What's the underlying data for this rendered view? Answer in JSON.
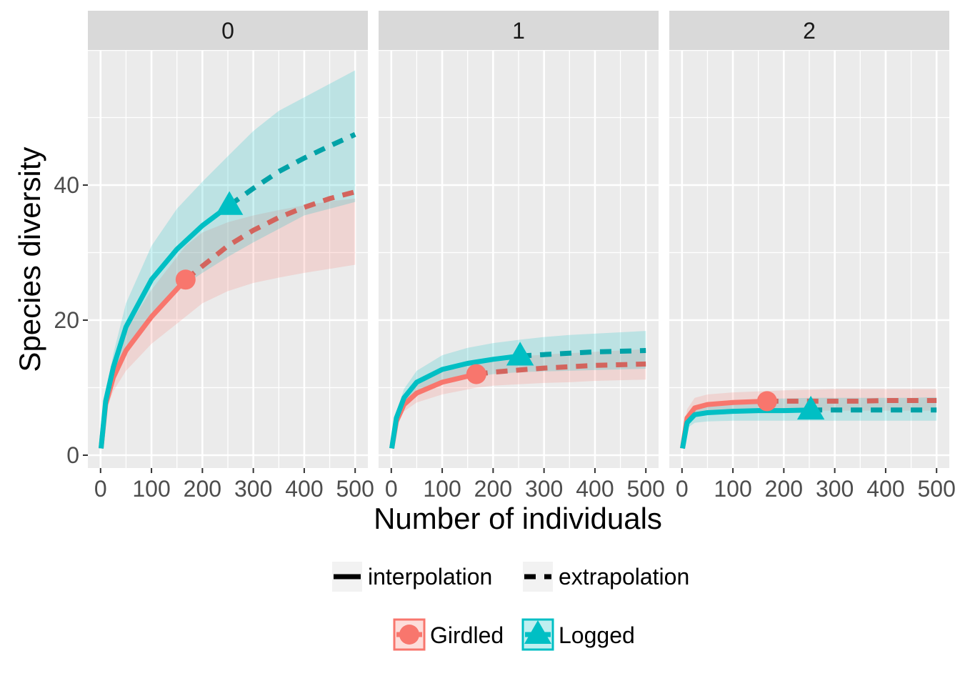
{
  "chart_data": {
    "type": "line",
    "facets": [
      "0",
      "1",
      "2"
    ],
    "xlabel": "Number of individuals",
    "ylabel": "Species diversity",
    "xlim": [
      0,
      500
    ],
    "ylim": [
      0,
      58
    ],
    "x_ticks": [
      "0",
      "100",
      "200",
      "300",
      "400",
      "500"
    ],
    "y_ticks": [
      "0",
      "20",
      "40"
    ],
    "y_tick_values": [
      0,
      20,
      40
    ],
    "grid": true,
    "legend_position": "bottom",
    "method_legend": [
      "interpolation",
      "extrapolation"
    ],
    "colors": {
      "Girdled": "#F8766D",
      "Logged": "#00BFC4"
    },
    "series": [
      {
        "name": "Girdled",
        "color": "#F8766D",
        "marker": "circle",
        "facets": [
          {
            "facet": "0",
            "observed": [
              167,
              26
            ],
            "x": [
              1,
              10,
              25,
              50,
              100,
              167,
              200,
              250,
              300,
              350,
              400,
              450,
              500
            ],
            "y": [
              1,
              7.5,
              11.5,
              15.5,
              20.5,
              26,
              28,
              31,
              33.3,
              35.2,
              36.7,
              38,
              39
            ],
            "lower": [
              1,
              6.5,
              9.5,
              12.5,
              16.5,
              20.5,
              22.5,
              24.3,
              25.5,
              26.3,
              27,
              27.6,
              28.2
            ],
            "upper": [
              1,
              8.5,
              13.5,
              18.5,
              24.5,
              31,
              33,
              34.5,
              35.5,
              36.3,
              37,
              37.6,
              38
            ]
          },
          {
            "facet": "1",
            "observed": [
              167,
              12
            ],
            "x": [
              1,
              10,
              25,
              50,
              100,
              167,
              200,
              250,
              300,
              350,
              400,
              450,
              500
            ],
            "y": [
              1,
              5,
              7.5,
              9.2,
              10.8,
              12,
              12.3,
              12.6,
              12.9,
              13.1,
              13.3,
              13.4,
              13.5
            ],
            "lower": [
              1,
              4.3,
              6.5,
              7.8,
              9,
              10,
              10.3,
              10.5,
              10.7,
              10.8,
              11,
              11.1,
              11.2
            ],
            "upper": [
              1,
              5.7,
              8.5,
              10.5,
              12.5,
              14,
              14.3,
              14.6,
              14.9,
              15.1,
              15.3,
              15.5,
              15.7
            ]
          },
          {
            "facet": "2",
            "observed": [
              167,
              8
            ],
            "x": [
              1,
              10,
              25,
              50,
              100,
              167,
              200,
              250,
              300,
              350,
              400,
              450,
              500
            ],
            "y": [
              1,
              5.5,
              7,
              7.5,
              7.8,
              8,
              8,
              8,
              8,
              8,
              8.1,
              8.1,
              8.1
            ],
            "lower": [
              1,
              4.5,
              5.8,
              6.2,
              6.5,
              6.6,
              6.6,
              6.6,
              6.6,
              6.6,
              6.6,
              6.6,
              6.6
            ],
            "upper": [
              1,
              6.8,
              8.5,
              9,
              9.3,
              9.5,
              9.6,
              9.7,
              9.8,
              9.8,
              9.8,
              9.8,
              9.8
            ]
          }
        ]
      },
      {
        "name": "Logged",
        "color": "#00BFC4",
        "marker": "triangle",
        "facets": [
          {
            "facet": "0",
            "observed": [
              253,
              37
            ],
            "x": [
              1,
              10,
              25,
              50,
              100,
              150,
              200,
              253,
              300,
              350,
              400,
              450,
              500
            ],
            "y": [
              1,
              8,
              13,
              19,
              26,
              30.5,
              34,
              37,
              39.5,
              42,
              44,
              45.8,
              47.5
            ],
            "lower": [
              1,
              7,
              11,
              15.5,
              21,
              24.5,
              27,
              29.5,
              31.5,
              33.5,
              35.5,
              36.5,
              37.5
            ],
            "upper": [
              1,
              9,
              15,
              22.5,
              31,
              36.5,
              40.5,
              44.5,
              48,
              51,
              53,
              55,
              57
            ]
          },
          {
            "facet": "1",
            "observed": [
              253,
              14.7
            ],
            "x": [
              1,
              10,
              25,
              50,
              100,
              150,
              200,
              253,
              300,
              350,
              400,
              450,
              500
            ],
            "y": [
              1,
              5.5,
              8.5,
              10.8,
              12.7,
              13.6,
              14.2,
              14.7,
              14.9,
              15.1,
              15.3,
              15.4,
              15.5
            ],
            "lower": [
              1,
              4.8,
              7.5,
              9.3,
              10.8,
              11.5,
              12,
              12.3,
              12.4,
              12.5,
              12.6,
              12.7,
              12.8
            ],
            "upper": [
              1,
              6.3,
              9.8,
              12.5,
              14.8,
              15.9,
              16.6,
              17.1,
              17.5,
              17.8,
              18,
              18.2,
              18.4
            ]
          },
          {
            "facet": "2",
            "observed": [
              253,
              6.7
            ],
            "x": [
              1,
              10,
              25,
              50,
              100,
              150,
              200,
              253,
              300,
              350,
              400,
              450,
              500
            ],
            "y": [
              1,
              4.8,
              6,
              6.3,
              6.5,
              6.6,
              6.6,
              6.7,
              6.7,
              6.7,
              6.7,
              6.7,
              6.7
            ],
            "lower": [
              1,
              4,
              4.8,
              5,
              5.1,
              5.1,
              5.1,
              5.1,
              5.1,
              5.1,
              5.1,
              5.1,
              5.1
            ],
            "upper": [
              1,
              5.8,
              7.3,
              7.8,
              8.1,
              8.3,
              8.4,
              8.5,
              8.5,
              8.5,
              8.5,
              8.5,
              8.6
            ]
          }
        ]
      }
    ]
  }
}
